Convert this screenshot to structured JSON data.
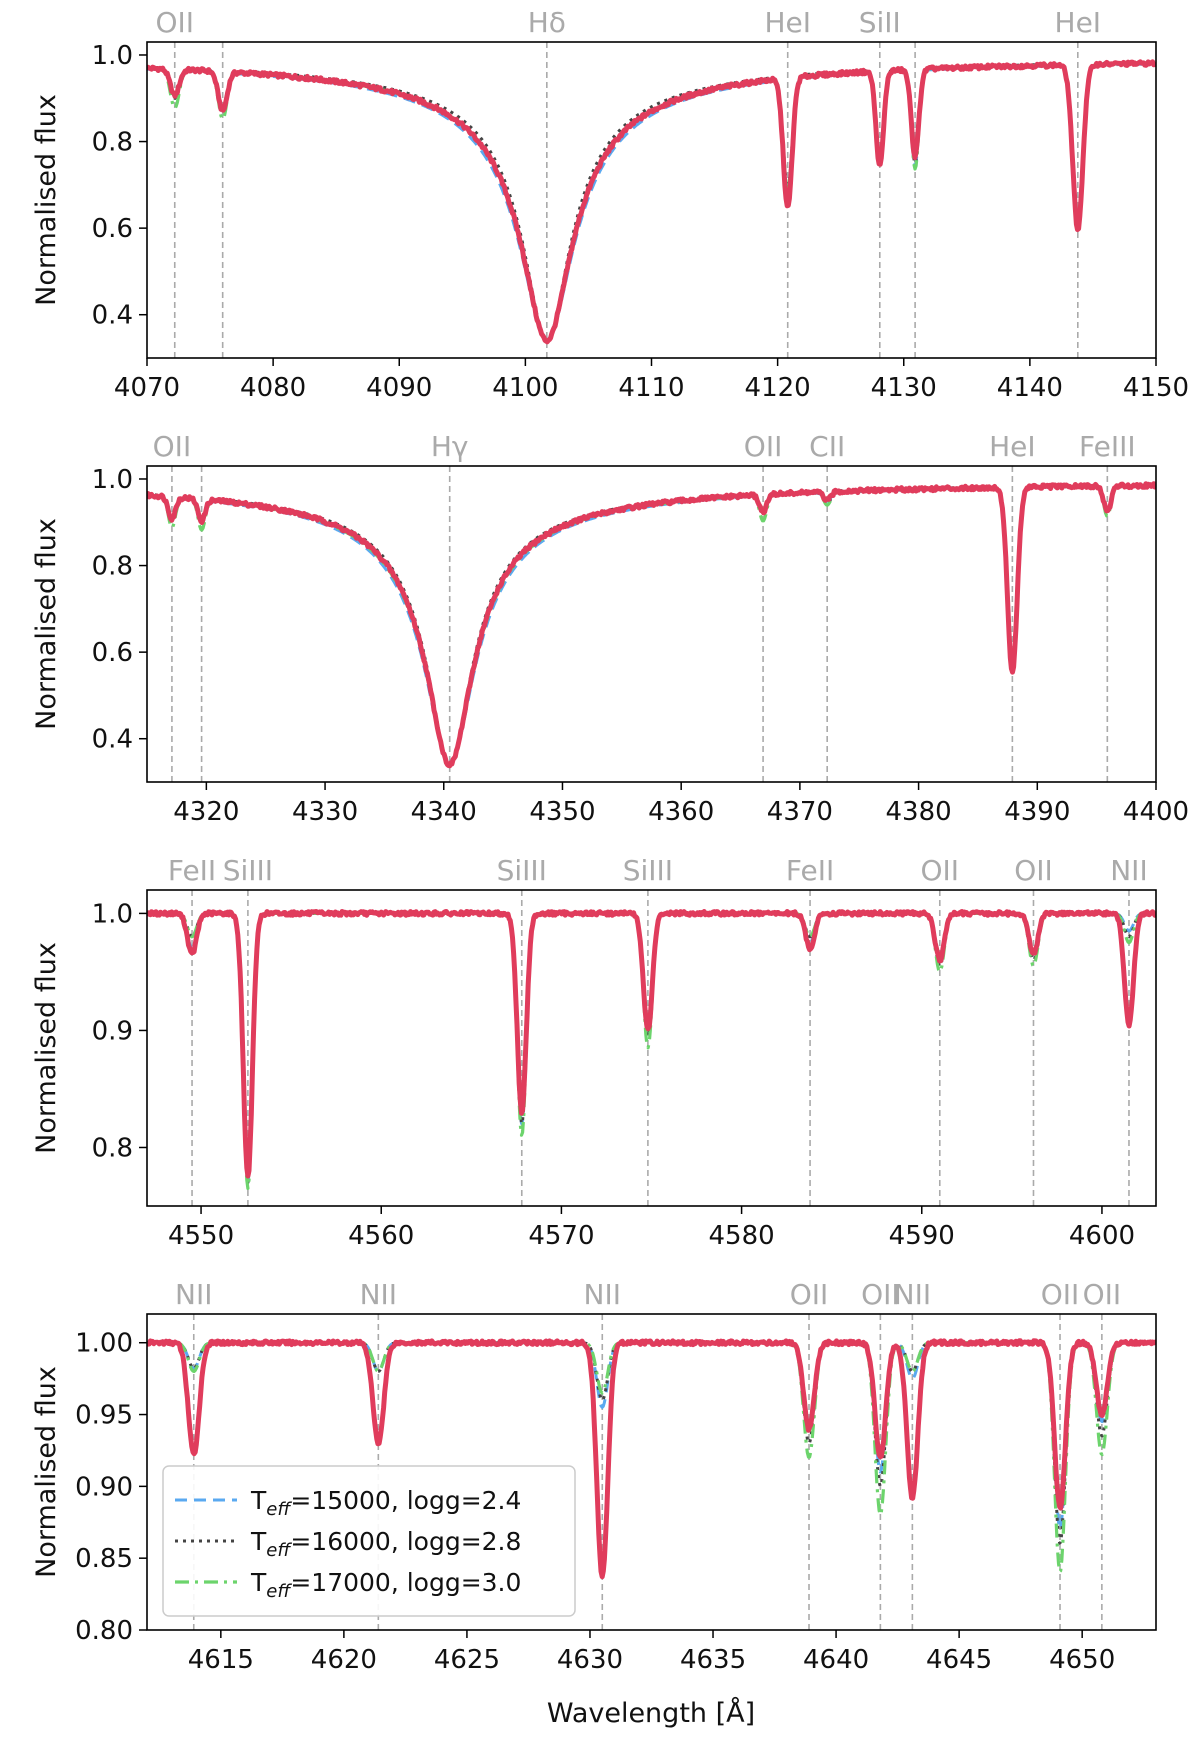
{
  "figure": {
    "xlabel": "Wavelength [Å]",
    "legend": {
      "placement": "lower-left of bottom panel",
      "entries": [
        {
          "key": "t15000",
          "prefix": "T",
          "sub": "eff",
          "suffix": "=15000, logg=2.4",
          "color": "#5aa9f0",
          "style": "dashed"
        },
        {
          "key": "t16000",
          "prefix": "T",
          "sub": "eff",
          "suffix": "=16000, logg=2.8",
          "color": "#444444",
          "style": "dotted"
        },
        {
          "key": "t17000",
          "prefix": "T",
          "sub": "eff",
          "suffix": "=17000, logg=3.0",
          "color": "#6cd46c",
          "style": "dashdot"
        }
      ]
    },
    "observed_color": "#e03c5c"
  },
  "chart_data": [
    {
      "type": "line",
      "ylabel": "Normalised flux",
      "xlim": [
        4070,
        4150
      ],
      "ylim": [
        0.3,
        1.03
      ],
      "xticks": [
        4070,
        4080,
        4090,
        4100,
        4110,
        4120,
        4130,
        4140,
        4150
      ],
      "yticks": [
        0.4,
        0.6,
        0.8,
        1.0
      ],
      "ytick_labels": [
        "0.4",
        "0.6",
        "0.8",
        "1.0"
      ],
      "balmer": {
        "center": 4101.7,
        "depth": 0.66,
        "width": 1.8,
        "wing_scale": [
          1.15,
          1.0,
          1.08,
          1.08
        ]
      },
      "line_markers": [
        {
          "x": 4072.2,
          "label": "OII"
        },
        {
          "x": 4076.0,
          "label": ""
        },
        {
          "x": 4101.7,
          "label": "Hδ"
        },
        {
          "x": 4120.8,
          "label": "HeI"
        },
        {
          "x": 4128.1,
          "label": "SiII"
        },
        {
          "x": 4130.9,
          "label": ""
        },
        {
          "x": 4143.8,
          "label": "HeI"
        }
      ],
      "absorption_lines": [
        {
          "x": 4072.2,
          "width": 0.35,
          "depths": [
            0.06,
            0.07,
            0.09,
            0.06
          ]
        },
        {
          "x": 4076.0,
          "width": 0.35,
          "depths": [
            0.08,
            0.09,
            0.11,
            0.09
          ]
        },
        {
          "x": 4120.8,
          "width": 0.35,
          "depths": [
            0.26,
            0.26,
            0.26,
            0.3
          ]
        },
        {
          "x": 4128.1,
          "width": 0.3,
          "depths": [
            0.2,
            0.2,
            0.2,
            0.22
          ]
        },
        {
          "x": 4130.9,
          "width": 0.3,
          "depths": [
            0.22,
            0.22,
            0.23,
            0.2
          ]
        },
        {
          "x": 4143.8,
          "width": 0.4,
          "depths": [
            0.36,
            0.36,
            0.37,
            0.38
          ]
        }
      ]
    },
    {
      "type": "line",
      "ylabel": "Normalised flux",
      "xlim": [
        4315,
        4400
      ],
      "ylim": [
        0.3,
        1.03
      ],
      "xticks": [
        4320,
        4330,
        4340,
        4350,
        4360,
        4370,
        4380,
        4390,
        4400
      ],
      "yticks": [
        0.4,
        0.6,
        0.8,
        1.0
      ],
      "ytick_labels": [
        "0.4",
        "0.6",
        "0.8",
        "1.0"
      ],
      "balmer": {
        "center": 4340.5,
        "depth": 0.66,
        "width": 1.8,
        "wing_scale": [
          1.12,
          1.0,
          1.08,
          1.05
        ]
      },
      "line_markers": [
        {
          "x": 4317.1,
          "label": "OII"
        },
        {
          "x": 4319.6,
          "label": ""
        },
        {
          "x": 4340.5,
          "label": "Hγ"
        },
        {
          "x": 4366.9,
          "label": "OII"
        },
        {
          "x": 4372.3,
          "label": "CII"
        },
        {
          "x": 4387.9,
          "label": "HeI"
        },
        {
          "x": 4395.9,
          "label": "FeIII"
        }
      ],
      "absorption_lines": [
        {
          "x": 4317.1,
          "width": 0.3,
          "depths": [
            0.05,
            0.06,
            0.07,
            0.05
          ]
        },
        {
          "x": 4319.6,
          "width": 0.3,
          "depths": [
            0.05,
            0.06,
            0.07,
            0.05
          ]
        },
        {
          "x": 4366.9,
          "width": 0.3,
          "depths": [
            0.04,
            0.05,
            0.06,
            0.04
          ]
        },
        {
          "x": 4372.3,
          "width": 0.3,
          "depths": [
            0.02,
            0.03,
            0.03,
            0.02
          ]
        },
        {
          "x": 4387.9,
          "width": 0.4,
          "depths": [
            0.4,
            0.41,
            0.42,
            0.43
          ]
        },
        {
          "x": 4395.9,
          "width": 0.3,
          "depths": [
            0.06,
            0.06,
            0.07,
            0.06
          ]
        }
      ]
    },
    {
      "type": "line",
      "ylabel": "Normalised flux",
      "xlim": [
        4547,
        4603
      ],
      "ylim": [
        0.75,
        1.02
      ],
      "xticks": [
        4550,
        4560,
        4570,
        4580,
        4590,
        4600
      ],
      "yticks": [
        0.8,
        0.9,
        1.0
      ],
      "ytick_labels": [
        "0.8",
        "0.9",
        "1.0"
      ],
      "line_markers": [
        {
          "x": 4549.5,
          "label": "FeII"
        },
        {
          "x": 4552.6,
          "label": "SiIII"
        },
        {
          "x": 4567.8,
          "label": "SiIII"
        },
        {
          "x": 4574.8,
          "label": "SiIII"
        },
        {
          "x": 4583.8,
          "label": "FeII"
        },
        {
          "x": 4591.0,
          "label": "OII"
        },
        {
          "x": 4596.2,
          "label": "OII"
        },
        {
          "x": 4601.5,
          "label": "NII"
        }
      ],
      "absorption_lines": [
        {
          "x": 4549.5,
          "width": 0.25,
          "depths": [
            0.03,
            0.02,
            0.02,
            0.035
          ]
        },
        {
          "x": 4552.6,
          "width": 0.25,
          "depths": [
            0.23,
            0.23,
            0.235,
            0.225
          ]
        },
        {
          "x": 4567.8,
          "width": 0.25,
          "depths": [
            0.18,
            0.18,
            0.19,
            0.17
          ]
        },
        {
          "x": 4574.8,
          "width": 0.25,
          "depths": [
            0.1,
            0.105,
            0.115,
            0.1
          ]
        },
        {
          "x": 4583.8,
          "width": 0.25,
          "depths": [
            0.025,
            0.02,
            0.02,
            0.03
          ]
        },
        {
          "x": 4591.0,
          "width": 0.25,
          "depths": [
            0.04,
            0.045,
            0.05,
            0.04
          ]
        },
        {
          "x": 4596.2,
          "width": 0.25,
          "depths": [
            0.035,
            0.04,
            0.045,
            0.035
          ]
        },
        {
          "x": 4601.5,
          "width": 0.25,
          "depths": [
            0.015,
            0.02,
            0.025,
            0.095
          ]
        }
      ]
    },
    {
      "type": "line",
      "ylabel": "Normalised flux",
      "xlim": [
        4612,
        4653
      ],
      "ylim": [
        0.8,
        1.02
      ],
      "xticks": [
        4615,
        4620,
        4625,
        4630,
        4635,
        4640,
        4645,
        4650
      ],
      "yticks": [
        0.8,
        0.85,
        0.9,
        0.95,
        1.0
      ],
      "ytick_labels": [
        "0.80",
        "0.85",
        "0.90",
        "0.95",
        "1.00"
      ],
      "line_markers": [
        {
          "x": 4613.9,
          "label": "NII"
        },
        {
          "x": 4621.4,
          "label": "NII"
        },
        {
          "x": 4630.5,
          "label": "NII"
        },
        {
          "x": 4638.9,
          "label": "OII"
        },
        {
          "x": 4641.8,
          "label": "OII"
        },
        {
          "x": 4643.1,
          "label": "NII"
        },
        {
          "x": 4649.1,
          "label": "OII"
        },
        {
          "x": 4650.8,
          "label": "OII"
        }
      ],
      "absorption_lines": [
        {
          "x": 4613.9,
          "width": 0.22,
          "depths": [
            0.018,
            0.018,
            0.02,
            0.078
          ]
        },
        {
          "x": 4621.4,
          "width": 0.22,
          "depths": [
            0.02,
            0.02,
            0.02,
            0.07
          ]
        },
        {
          "x": 4630.5,
          "width": 0.22,
          "depths": [
            0.045,
            0.04,
            0.035,
            0.163
          ]
        },
        {
          "x": 4638.9,
          "width": 0.22,
          "depths": [
            0.06,
            0.07,
            0.08,
            0.06
          ]
        },
        {
          "x": 4641.8,
          "width": 0.22,
          "depths": [
            0.09,
            0.1,
            0.12,
            0.08
          ]
        },
        {
          "x": 4643.1,
          "width": 0.22,
          "depths": [
            0.025,
            0.02,
            0.02,
            0.108
          ]
        },
        {
          "x": 4649.1,
          "width": 0.22,
          "depths": [
            0.13,
            0.14,
            0.16,
            0.115
          ]
        },
        {
          "x": 4650.8,
          "width": 0.22,
          "depths": [
            0.055,
            0.065,
            0.078,
            0.05
          ]
        }
      ]
    }
  ]
}
